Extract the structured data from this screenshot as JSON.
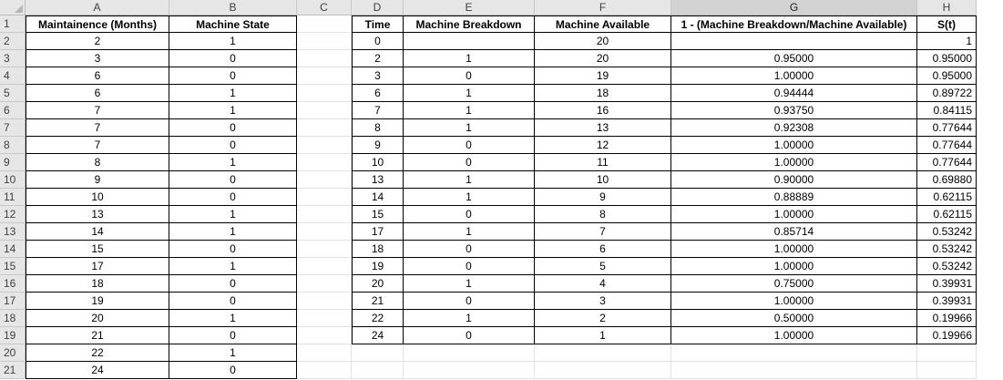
{
  "columns": [
    "A",
    "B",
    "C",
    "D",
    "E",
    "F",
    "G",
    "H"
  ],
  "selected_column": "G",
  "rows": [
    "1",
    "2",
    "3",
    "4",
    "5",
    "6",
    "7",
    "8",
    "9",
    "10",
    "11",
    "12",
    "13",
    "14",
    "15",
    "16",
    "17",
    "18",
    "19",
    "20",
    "21"
  ],
  "table1": {
    "headers": [
      "Maintainence (Months)",
      "Machine State"
    ],
    "data": [
      [
        "2",
        "1"
      ],
      [
        "3",
        "0"
      ],
      [
        "6",
        "0"
      ],
      [
        "6",
        "1"
      ],
      [
        "7",
        "1"
      ],
      [
        "7",
        "0"
      ],
      [
        "7",
        "0"
      ],
      [
        "8",
        "1"
      ],
      [
        "9",
        "0"
      ],
      [
        "10",
        "0"
      ],
      [
        "13",
        "1"
      ],
      [
        "14",
        "1"
      ],
      [
        "15",
        "0"
      ],
      [
        "17",
        "1"
      ],
      [
        "18",
        "0"
      ],
      [
        "19",
        "0"
      ],
      [
        "20",
        "1"
      ],
      [
        "21",
        "0"
      ],
      [
        "22",
        "1"
      ],
      [
        "24",
        "0"
      ]
    ]
  },
  "table2": {
    "headers": [
      "Time",
      "Machine Breakdown",
      "Machine Available",
      "1 - (Machine Breakdown/Machine Available)",
      "S(t)"
    ],
    "data": [
      [
        "0",
        "",
        "20",
        "",
        "1"
      ],
      [
        "2",
        "1",
        "20",
        "0.95000",
        "0.95000"
      ],
      [
        "3",
        "0",
        "19",
        "1.00000",
        "0.95000"
      ],
      [
        "6",
        "1",
        "18",
        "0.94444",
        "0.89722"
      ],
      [
        "7",
        "1",
        "16",
        "0.93750",
        "0.84115"
      ],
      [
        "8",
        "1",
        "13",
        "0.92308",
        "0.77644"
      ],
      [
        "9",
        "0",
        "12",
        "1.00000",
        "0.77644"
      ],
      [
        "10",
        "0",
        "11",
        "1.00000",
        "0.77644"
      ],
      [
        "13",
        "1",
        "10",
        "0.90000",
        "0.69880"
      ],
      [
        "14",
        "1",
        "9",
        "0.88889",
        "0.62115"
      ],
      [
        "15",
        "0",
        "8",
        "1.00000",
        "0.62115"
      ],
      [
        "17",
        "1",
        "7",
        "0.85714",
        "0.53242"
      ],
      [
        "18",
        "0",
        "6",
        "1.00000",
        "0.53242"
      ],
      [
        "19",
        "0",
        "5",
        "1.00000",
        "0.53242"
      ],
      [
        "20",
        "1",
        "4",
        "0.75000",
        "0.39931"
      ],
      [
        "21",
        "0",
        "3",
        "1.00000",
        "0.39931"
      ],
      [
        "22",
        "1",
        "2",
        "0.50000",
        "0.19966"
      ],
      [
        "24",
        "0",
        "1",
        "1.00000",
        "0.19966"
      ]
    ]
  }
}
